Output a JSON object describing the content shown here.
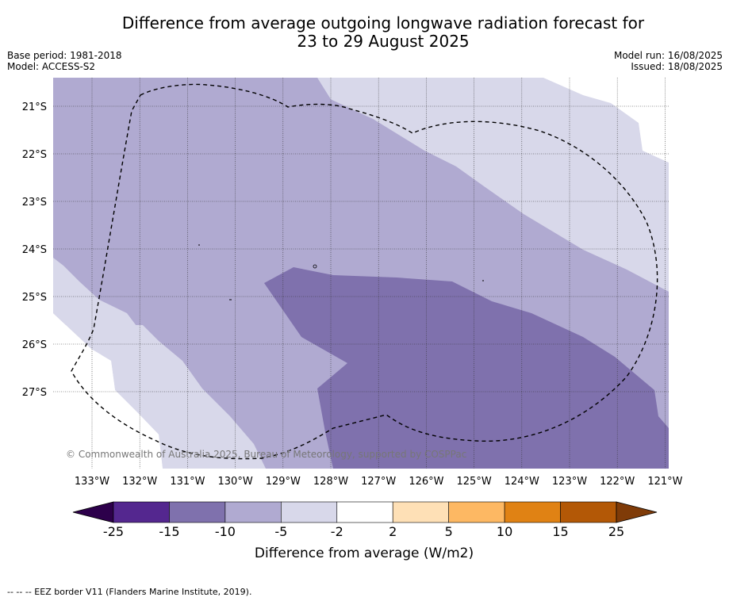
{
  "title_line1": "Difference from average outgoing longwave radiation forecast for",
  "title_line2": "23 to 29 August 2025",
  "base_period": "Base period: 1981-2018",
  "model": "Model: ACCESS-S2",
  "model_run": "Model run: 16/08/2025",
  "issued": "Issued: 18/08/2025",
  "copyright": "© Commonwealth of Australia 2025, Bureau of Meteorology, supported by COSPPac",
  "lat_labels": [
    "21°S",
    "22°S",
    "23°S",
    "24°S",
    "25°S",
    "26°S",
    "27°S"
  ],
  "lon_labels": [
    "133°W",
    "132°W",
    "131°W",
    "130°W",
    "129°W",
    "128°W",
    "127°W",
    "126°W",
    "125°W",
    "124°W",
    "123°W",
    "122°W",
    "121°W"
  ],
  "colorbar": {
    "ticks": [
      "-25",
      "-15",
      "-10",
      "-5",
      "-2",
      "2",
      "5",
      "10",
      "15",
      "25"
    ],
    "colors": [
      "#54278f",
      "#7f71ad",
      "#b0aad1",
      "#d8d8ea",
      "#ffffff",
      "#fee0b6",
      "#fdb863",
      "#e08214",
      "#b35806"
    ],
    "under_color": "#2d004b",
    "over_color": "#7f3b08",
    "label": "Difference from average (W/m2)"
  },
  "legend_text": "-- -- -- EEZ border V11 (Flanders Marine Institute, 2019)."
}
